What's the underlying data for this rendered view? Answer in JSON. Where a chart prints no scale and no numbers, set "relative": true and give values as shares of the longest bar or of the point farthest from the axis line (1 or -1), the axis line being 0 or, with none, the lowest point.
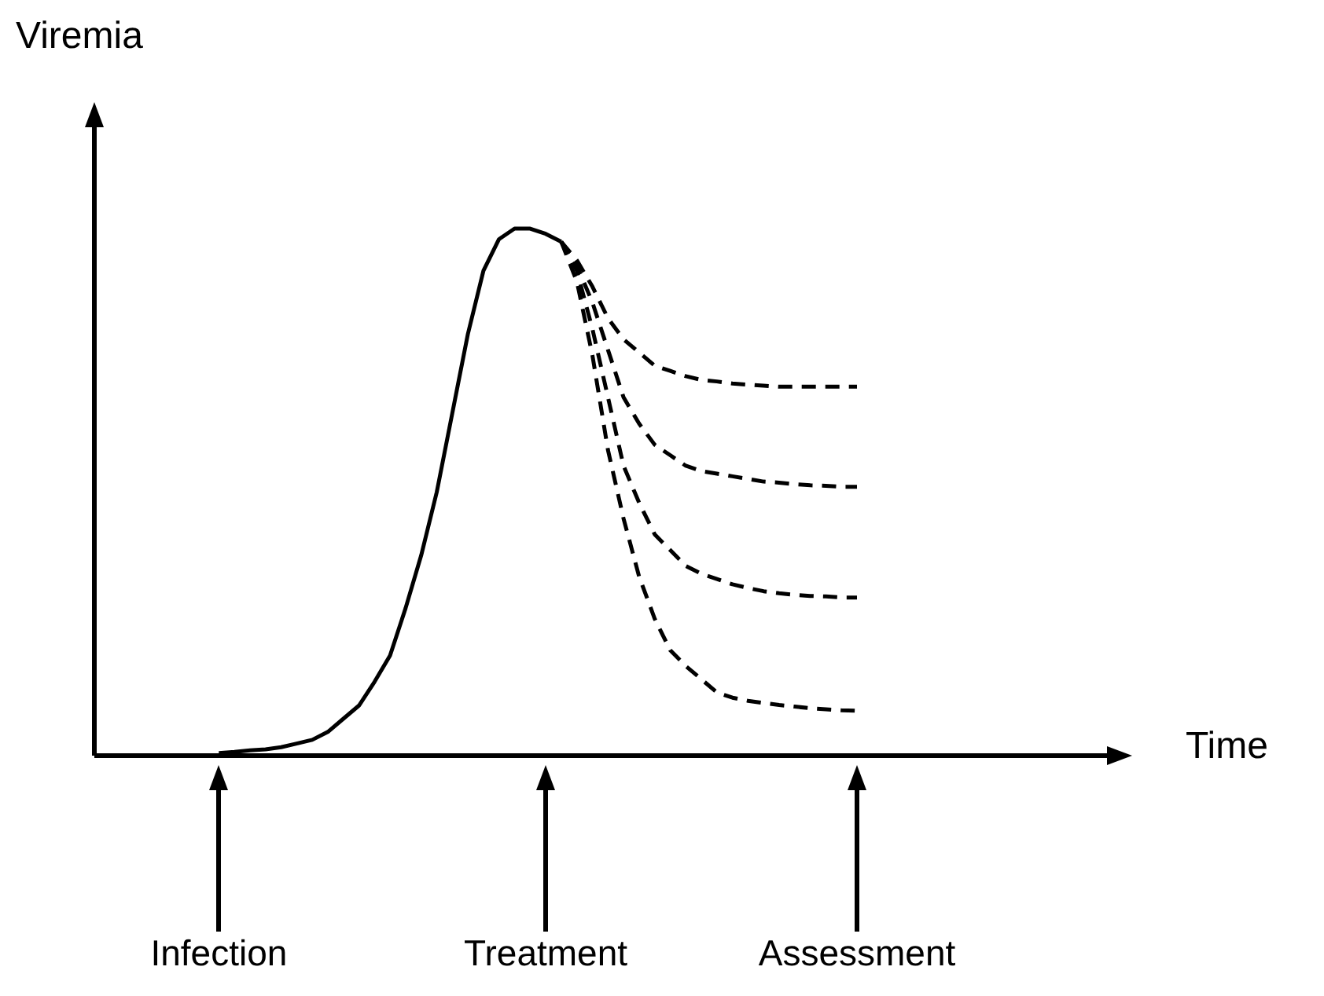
{
  "chart_data": {
    "type": "line",
    "annotations": [
      "Time"
    ],
    "ylabel": "Viremia",
    "relative": true,
    "marker": "none",
    "categories": [
      null,
      null,
      null,
      null,
      null,
      null,
      null,
      null,
      "Infection",
      null,
      null,
      null,
      null,
      null,
      null,
      null,
      null,
      null,
      null,
      null,
      null,
      null,
      null,
      null,
      null,
      null,
      null,
      null,
      null,
      "Treatment",
      null,
      null,
      null,
      null,
      null,
      null,
      null,
      null,
      null,
      null,
      null,
      null,
      null,
      null,
      null,
      null,
      null,
      null,
      null,
      "Assessment"
    ],
    "series": [
      {
        "color": "#000000",
        "line_style": "solid",
        "values": [
          null,
          null,
          null,
          null,
          null,
          null,
          null,
          null,
          0.005,
          0.007,
          0.01,
          0.012,
          0.016,
          0.023,
          0.03,
          0.045,
          0.07,
          0.095,
          0.14,
          0.19,
          0.28,
          0.38,
          0.5,
          0.65,
          0.8,
          0.92,
          0.98,
          1,
          1,
          0.99,
          0.975,
          null,
          null,
          null,
          null,
          null,
          null,
          null,
          null,
          null,
          null,
          null,
          null,
          null,
          null,
          null,
          null,
          null,
          null,
          null
        ]
      },
      {
        "color": "#000000",
        "line_style": "dashed",
        "values": [
          null,
          null,
          null,
          null,
          null,
          null,
          null,
          null,
          null,
          null,
          null,
          null,
          null,
          null,
          null,
          null,
          null,
          null,
          null,
          null,
          null,
          null,
          null,
          null,
          null,
          null,
          null,
          null,
          null,
          null,
          0.975,
          0.94,
          0.89,
          0.83,
          0.79,
          0.765,
          0.74,
          0.73,
          0.72,
          0.713,
          0.71,
          0.706,
          0.704,
          0.702,
          0.7,
          0.7,
          0.7,
          0.7,
          0.7,
          0.7
        ]
      },
      {
        "color": "#000000",
        "line_style": "dashed",
        "values": [
          null,
          null,
          null,
          null,
          null,
          null,
          null,
          null,
          null,
          null,
          null,
          null,
          null,
          null,
          null,
          null,
          null,
          null,
          null,
          null,
          null,
          null,
          null,
          null,
          null,
          null,
          null,
          null,
          null,
          null,
          0.975,
          0.93,
          0.86,
          0.77,
          0.68,
          0.63,
          0.59,
          0.57,
          0.55,
          0.54,
          0.535,
          0.53,
          0.525,
          0.52,
          0.518,
          0.515,
          0.513,
          0.512,
          0.51,
          0.51
        ]
      },
      {
        "color": "#000000",
        "line_style": "dashed",
        "values": [
          null,
          null,
          null,
          null,
          null,
          null,
          null,
          null,
          null,
          null,
          null,
          null,
          null,
          null,
          null,
          null,
          null,
          null,
          null,
          null,
          null,
          null,
          null,
          null,
          null,
          null,
          null,
          null,
          null,
          null,
          0.975,
          0.92,
          0.81,
          0.68,
          0.55,
          0.48,
          0.42,
          0.39,
          0.36,
          0.345,
          0.335,
          0.325,
          0.318,
          0.312,
          0.308,
          0.305,
          0.303,
          0.302,
          0.3,
          0.3
        ]
      },
      {
        "color": "#000000",
        "line_style": "dashed",
        "values": [
          null,
          null,
          null,
          null,
          null,
          null,
          null,
          null,
          null,
          null,
          null,
          null,
          null,
          null,
          null,
          null,
          null,
          null,
          null,
          null,
          null,
          null,
          null,
          null,
          null,
          null,
          null,
          null,
          null,
          null,
          0.975,
          0.9,
          0.76,
          0.58,
          0.45,
          0.34,
          0.26,
          0.2,
          0.17,
          0.145,
          0.12,
          0.11,
          0.104,
          0.1,
          0.096,
          0.093,
          0.09,
          0.088,
          0.086,
          0.085
        ]
      }
    ]
  }
}
